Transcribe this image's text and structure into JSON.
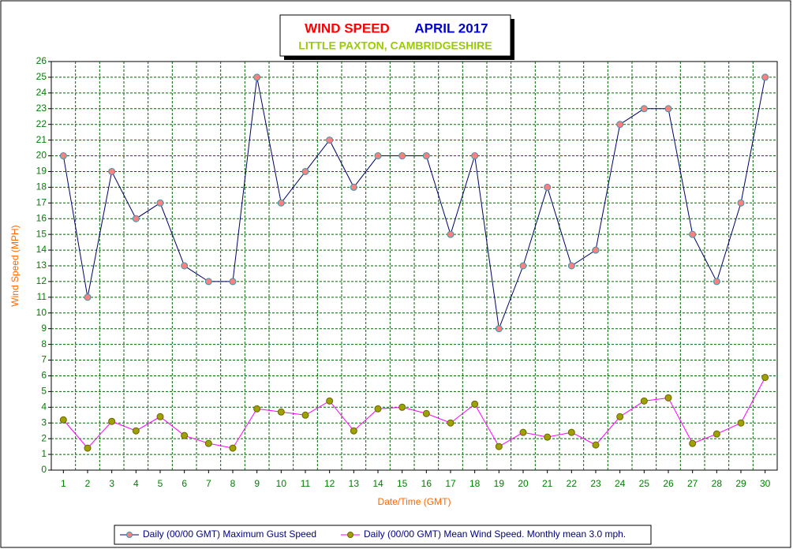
{
  "chart_data": {
    "type": "line",
    "title": "WIND SPEED",
    "title_period": "APRIL 2017",
    "subtitle": "LITTLE PAXTON, CAMBRIDGESHIRE",
    "x_label": "Date/Time (GMT)",
    "y_label": "Wind Speed (MPH)",
    "categories": [
      "1",
      "2",
      "3",
      "4",
      "5",
      "6",
      "7",
      "8",
      "9",
      "10",
      "11",
      "12",
      "13",
      "14",
      "15",
      "16",
      "17",
      "18",
      "19",
      "20",
      "21",
      "22",
      "23",
      "24",
      "25",
      "26",
      "27",
      "28",
      "29",
      "30"
    ],
    "series": [
      {
        "name": "Daily (00/00 GMT) Maximum Gust Speed",
        "color": "#000066",
        "marker_color": "#ff8080",
        "values": [
          20,
          11,
          19,
          16,
          17,
          13,
          12,
          12,
          25,
          17,
          19,
          21,
          18,
          20,
          20,
          20,
          15,
          20,
          9,
          13,
          18,
          13,
          14,
          22,
          23,
          23,
          15,
          12,
          17,
          25
        ]
      },
      {
        "name": "Daily (00/00 GMT) Mean Wind Speed. Monthly mean 3.0 mph.",
        "color": "#ff00ff",
        "marker_color": "#a0a000",
        "values": [
          3.2,
          1.4,
          3.1,
          2.5,
          3.4,
          2.2,
          1.7,
          1.4,
          3.9,
          3.7,
          3.5,
          4.4,
          2.5,
          3.9,
          4.0,
          3.6,
          3.0,
          4.2,
          1.5,
          2.4,
          2.1,
          2.4,
          1.6,
          3.4,
          4.4,
          4.6,
          1.7,
          2.3,
          3.0,
          5.9
        ]
      }
    ],
    "ylim": [
      0,
      26
    ],
    "yticks": [
      0,
      1,
      2,
      3,
      4,
      5,
      6,
      7,
      8,
      9,
      10,
      11,
      12,
      13,
      14,
      15,
      16,
      17,
      18,
      19,
      20,
      21,
      22,
      23,
      24,
      25,
      26
    ],
    "grid": true
  }
}
